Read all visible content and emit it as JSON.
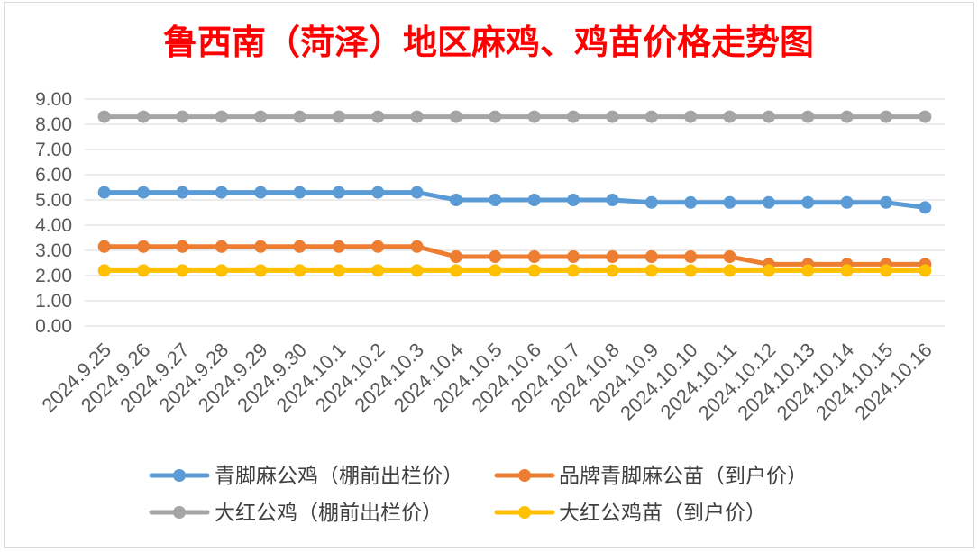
{
  "chart_data": {
    "type": "line",
    "title": "鲁西南（菏泽）地区麻鸡、鸡苗价格走势图",
    "title_color": "#FF0000",
    "categories": [
      "2024.9.25",
      "2024.9.26",
      "2024.9.27",
      "2024.9.28",
      "2024.9.29",
      "2024.9.30",
      "2024.10.1",
      "2024.10.2",
      "2024.10.3",
      "2024.10.4",
      "2024.10.5",
      "2024.10.6",
      "2024.10.7",
      "2024.10.8",
      "2024.10.9",
      "2024.10.10",
      "2024.10.11",
      "2024.10.12",
      "2024.10.13",
      "2024.10.14",
      "2024.10.15",
      "2024.10.16"
    ],
    "ylim": [
      0,
      9
    ],
    "yticks": [
      "0.00",
      "1.00",
      "2.00",
      "3.00",
      "4.00",
      "5.00",
      "6.00",
      "7.00",
      "8.00",
      "9.00"
    ],
    "grid": true,
    "legend": "bottom",
    "series": [
      {
        "name": "青脚麻公鸡（棚前出栏价）",
        "color": "#5B9BD5",
        "values": [
          5.3,
          5.3,
          5.3,
          5.3,
          5.3,
          5.3,
          5.3,
          5.3,
          5.3,
          5.0,
          5.0,
          5.0,
          5.0,
          5.0,
          4.9,
          4.9,
          4.9,
          4.9,
          4.9,
          4.9,
          4.9,
          4.7
        ]
      },
      {
        "name": "品牌青脚麻公苗（到户价）",
        "color": "#ED7D31",
        "values": [
          3.15,
          3.15,
          3.15,
          3.15,
          3.15,
          3.15,
          3.15,
          3.15,
          3.15,
          2.75,
          2.75,
          2.75,
          2.75,
          2.75,
          2.75,
          2.75,
          2.75,
          2.45,
          2.45,
          2.45,
          2.45,
          2.45
        ]
      },
      {
        "name": "大红公鸡（棚前出栏价）",
        "color": "#A5A5A5",
        "values": [
          8.3,
          8.3,
          8.3,
          8.3,
          8.3,
          8.3,
          8.3,
          8.3,
          8.3,
          8.3,
          8.3,
          8.3,
          8.3,
          8.3,
          8.3,
          8.3,
          8.3,
          8.3,
          8.3,
          8.3,
          8.3,
          8.3
        ]
      },
      {
        "name": "大红公鸡苗（到户价）",
        "color": "#FFC000",
        "values": [
          2.2,
          2.2,
          2.2,
          2.2,
          2.2,
          2.2,
          2.2,
          2.2,
          2.2,
          2.2,
          2.2,
          2.2,
          2.2,
          2.2,
          2.2,
          2.2,
          2.2,
          2.2,
          2.2,
          2.2,
          2.2,
          2.2
        ]
      }
    ]
  }
}
